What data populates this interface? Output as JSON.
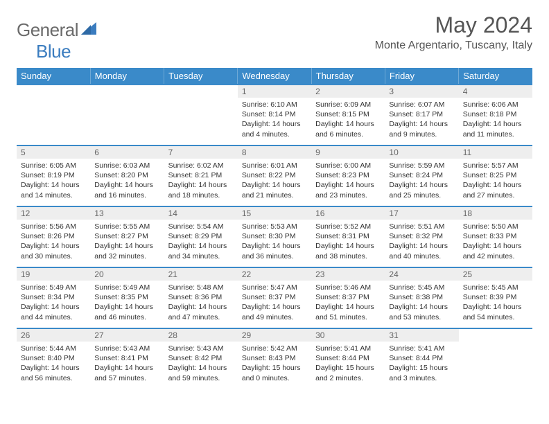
{
  "logo": {
    "text1": "General",
    "text2": "Blue"
  },
  "title": "May 2024",
  "location": "Monte Argentario, Tuscany, Italy",
  "colors": {
    "header_bg": "#3a8ac9",
    "header_border": "#6fa9d6",
    "cell_border": "#3a8ac9",
    "daynum_bg": "#eeeeee",
    "text_dark": "#333333",
    "text_muted": "#555555",
    "logo_grey": "#6b6b6b",
    "logo_blue": "#3a7cbf"
  },
  "weekdays": [
    "Sunday",
    "Monday",
    "Tuesday",
    "Wednesday",
    "Thursday",
    "Friday",
    "Saturday"
  ],
  "weeks": [
    [
      null,
      null,
      null,
      {
        "n": "1",
        "sunrise": "6:10 AM",
        "sunset": "8:14 PM",
        "daylight": "14 hours and 4 minutes."
      },
      {
        "n": "2",
        "sunrise": "6:09 AM",
        "sunset": "8:15 PM",
        "daylight": "14 hours and 6 minutes."
      },
      {
        "n": "3",
        "sunrise": "6:07 AM",
        "sunset": "8:17 PM",
        "daylight": "14 hours and 9 minutes."
      },
      {
        "n": "4",
        "sunrise": "6:06 AM",
        "sunset": "8:18 PM",
        "daylight": "14 hours and 11 minutes."
      }
    ],
    [
      {
        "n": "5",
        "sunrise": "6:05 AM",
        "sunset": "8:19 PM",
        "daylight": "14 hours and 14 minutes."
      },
      {
        "n": "6",
        "sunrise": "6:03 AM",
        "sunset": "8:20 PM",
        "daylight": "14 hours and 16 minutes."
      },
      {
        "n": "7",
        "sunrise": "6:02 AM",
        "sunset": "8:21 PM",
        "daylight": "14 hours and 18 minutes."
      },
      {
        "n": "8",
        "sunrise": "6:01 AM",
        "sunset": "8:22 PM",
        "daylight": "14 hours and 21 minutes."
      },
      {
        "n": "9",
        "sunrise": "6:00 AM",
        "sunset": "8:23 PM",
        "daylight": "14 hours and 23 minutes."
      },
      {
        "n": "10",
        "sunrise": "5:59 AM",
        "sunset": "8:24 PM",
        "daylight": "14 hours and 25 minutes."
      },
      {
        "n": "11",
        "sunrise": "5:57 AM",
        "sunset": "8:25 PM",
        "daylight": "14 hours and 27 minutes."
      }
    ],
    [
      {
        "n": "12",
        "sunrise": "5:56 AM",
        "sunset": "8:26 PM",
        "daylight": "14 hours and 30 minutes."
      },
      {
        "n": "13",
        "sunrise": "5:55 AM",
        "sunset": "8:27 PM",
        "daylight": "14 hours and 32 minutes."
      },
      {
        "n": "14",
        "sunrise": "5:54 AM",
        "sunset": "8:29 PM",
        "daylight": "14 hours and 34 minutes."
      },
      {
        "n": "15",
        "sunrise": "5:53 AM",
        "sunset": "8:30 PM",
        "daylight": "14 hours and 36 minutes."
      },
      {
        "n": "16",
        "sunrise": "5:52 AM",
        "sunset": "8:31 PM",
        "daylight": "14 hours and 38 minutes."
      },
      {
        "n": "17",
        "sunrise": "5:51 AM",
        "sunset": "8:32 PM",
        "daylight": "14 hours and 40 minutes."
      },
      {
        "n": "18",
        "sunrise": "5:50 AM",
        "sunset": "8:33 PM",
        "daylight": "14 hours and 42 minutes."
      }
    ],
    [
      {
        "n": "19",
        "sunrise": "5:49 AM",
        "sunset": "8:34 PM",
        "daylight": "14 hours and 44 minutes."
      },
      {
        "n": "20",
        "sunrise": "5:49 AM",
        "sunset": "8:35 PM",
        "daylight": "14 hours and 46 minutes."
      },
      {
        "n": "21",
        "sunrise": "5:48 AM",
        "sunset": "8:36 PM",
        "daylight": "14 hours and 47 minutes."
      },
      {
        "n": "22",
        "sunrise": "5:47 AM",
        "sunset": "8:37 PM",
        "daylight": "14 hours and 49 minutes."
      },
      {
        "n": "23",
        "sunrise": "5:46 AM",
        "sunset": "8:37 PM",
        "daylight": "14 hours and 51 minutes."
      },
      {
        "n": "24",
        "sunrise": "5:45 AM",
        "sunset": "8:38 PM",
        "daylight": "14 hours and 53 minutes."
      },
      {
        "n": "25",
        "sunrise": "5:45 AM",
        "sunset": "8:39 PM",
        "daylight": "14 hours and 54 minutes."
      }
    ],
    [
      {
        "n": "26",
        "sunrise": "5:44 AM",
        "sunset": "8:40 PM",
        "daylight": "14 hours and 56 minutes."
      },
      {
        "n": "27",
        "sunrise": "5:43 AM",
        "sunset": "8:41 PM",
        "daylight": "14 hours and 57 minutes."
      },
      {
        "n": "28",
        "sunrise": "5:43 AM",
        "sunset": "8:42 PM",
        "daylight": "14 hours and 59 minutes."
      },
      {
        "n": "29",
        "sunrise": "5:42 AM",
        "sunset": "8:43 PM",
        "daylight": "15 hours and 0 minutes."
      },
      {
        "n": "30",
        "sunrise": "5:41 AM",
        "sunset": "8:44 PM",
        "daylight": "15 hours and 2 minutes."
      },
      {
        "n": "31",
        "sunrise": "5:41 AM",
        "sunset": "8:44 PM",
        "daylight": "15 hours and 3 minutes."
      },
      null
    ]
  ],
  "labels": {
    "sunrise": "Sunrise:",
    "sunset": "Sunset:",
    "daylight": "Daylight:"
  }
}
